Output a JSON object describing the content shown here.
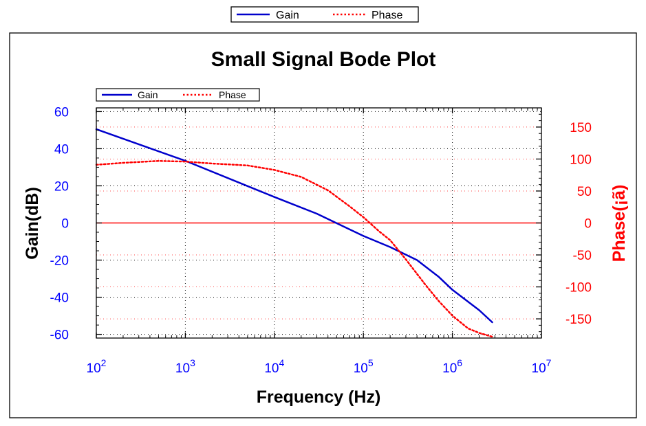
{
  "chart_data": {
    "type": "line",
    "title": "Small Signal Bode Plot",
    "xlabel": "Frequency (Hz)",
    "ylabel": "Gain(dB)",
    "y2label": "Phase(¡ã)",
    "x_scale": "log",
    "xlim": [
      100,
      10000000
    ],
    "ylim": [
      -62,
      62
    ],
    "y2lim": [
      -180,
      180
    ],
    "x_ticks": [
      {
        "value": 100,
        "base": "10",
        "exp": "2"
      },
      {
        "value": 1000,
        "base": "10",
        "exp": "3"
      },
      {
        "value": 10000,
        "base": "10",
        "exp": "4"
      },
      {
        "value": 100000,
        "base": "10",
        "exp": "5"
      },
      {
        "value": 1000000,
        "base": "10",
        "exp": "6"
      },
      {
        "value": 10000000,
        "base": "10",
        "exp": "7"
      }
    ],
    "y_ticks": [
      "60",
      "40",
      "20",
      "0",
      "-20",
      "-40",
      "-60"
    ],
    "y2_ticks": [
      "150",
      "100",
      "50",
      "0",
      "-50",
      "-100",
      "-150"
    ],
    "grid": true,
    "legend": {
      "placement": "top-left",
      "entries": [
        "Gain",
        "Phase"
      ]
    },
    "outer_legend": {
      "placement": "top-center",
      "entries": [
        "Gain",
        "Phase"
      ]
    },
    "zero_line_color": "#ff0000",
    "series": [
      {
        "name": "Gain",
        "axis": "left",
        "color": "#0000cc",
        "style": "solid",
        "x": [
          100,
          1000,
          10000,
          30000,
          100000,
          200000,
          400000,
          700000,
          1000000,
          2000000,
          2800000
        ],
        "y": [
          50.5,
          33.5,
          14,
          5,
          -7,
          -13,
          -20,
          -29,
          -36,
          -47,
          -53.5
        ]
      },
      {
        "name": "Phase",
        "axis": "right",
        "color": "#ff0000",
        "style": "dotted",
        "x": [
          100,
          200,
          500,
          1000,
          2000,
          5000,
          10000,
          20000,
          40000,
          70000,
          100000,
          150000,
          200000,
          300000,
          500000,
          700000,
          1000000,
          1500000,
          2000000,
          2800000
        ],
        "y": [
          91,
          94,
          97,
          96,
          93,
          90,
          83,
          72,
          51,
          26,
          9,
          -13,
          -27,
          -57,
          -97,
          -122,
          -145,
          -165,
          -172,
          -178
        ]
      }
    ]
  }
}
